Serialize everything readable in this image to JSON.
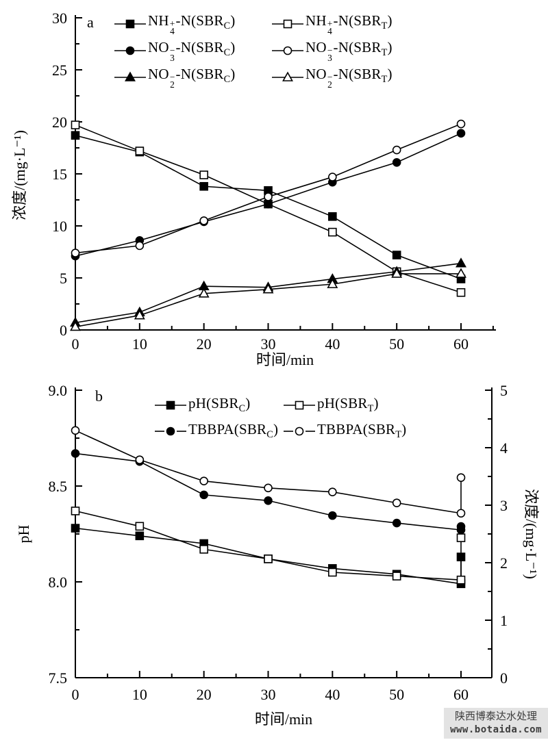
{
  "figure": {
    "background": "#ffffff",
    "line_color": "#000000",
    "text_color": "#000000"
  },
  "watermark": {
    "company": "陕西博泰达水处理",
    "url": "www.botaida.com"
  },
  "chart_data": [
    {
      "panel_tag": "a",
      "type": "line",
      "x": [
        0,
        10,
        20,
        30,
        40,
        50,
        60
      ],
      "xlabel": "时间/min",
      "ylabel": "浓度/(mg·L⁻¹)",
      "xlim": [
        0,
        65
      ],
      "ylim": [
        0,
        30
      ],
      "xticks": [
        0,
        10,
        20,
        30,
        40,
        50,
        60
      ],
      "yticks": [
        0,
        5,
        10,
        15,
        20,
        25,
        30
      ],
      "x_minor": [
        5,
        15,
        25,
        35,
        45,
        55,
        65
      ],
      "y_minor_step": 2.5,
      "grid": false,
      "legend_position": "top-inside-two-columns",
      "series": [
        {
          "id": "nh4-sbrc",
          "name": "NH4+-N(SBRC)",
          "marker": "square",
          "variant": "filled",
          "values": [
            18.7,
            17.1,
            13.8,
            13.4,
            10.9,
            7.2,
            4.9
          ],
          "legend_parts": [
            {
              "t": "NH"
            },
            {
              "stk": [
                "+",
                "4"
              ]
            },
            {
              "t": "-N(SBR"
            },
            {
              "sub": "C"
            },
            {
              "t": ")"
            }
          ]
        },
        {
          "id": "nh4-sbrt",
          "name": "NH4+-N(SBRT)",
          "marker": "square",
          "variant": "open",
          "values": [
            19.7,
            17.2,
            14.9,
            12.1,
            9.4,
            5.6,
            3.6
          ],
          "legend_parts": [
            {
              "t": "NH"
            },
            {
              "stk": [
                "+",
                "4"
              ]
            },
            {
              "t": "-N(SBR"
            },
            {
              "sub": "T"
            },
            {
              "t": ")"
            }
          ]
        },
        {
          "id": "no3-sbrc",
          "name": "NO3--N(SBRC)",
          "marker": "circle",
          "variant": "filled",
          "values": [
            7.1,
            8.6,
            10.4,
            12.1,
            14.2,
            16.1,
            18.9
          ],
          "legend_parts": [
            {
              "t": "NO"
            },
            {
              "stk": [
                "−",
                "3"
              ]
            },
            {
              "t": "-N(SBR"
            },
            {
              "sub": "C"
            },
            {
              "t": ")"
            }
          ]
        },
        {
          "id": "no3-sbrt",
          "name": "NO3--N(SBRT)",
          "marker": "circle",
          "variant": "open",
          "values": [
            7.4,
            8.1,
            10.5,
            12.8,
            14.7,
            17.3,
            19.8
          ],
          "legend_parts": [
            {
              "t": "NO"
            },
            {
              "stk": [
                "−",
                "3"
              ]
            },
            {
              "t": "-N(SBR"
            },
            {
              "sub": "T"
            },
            {
              "t": ")"
            }
          ]
        },
        {
          "id": "no2-sbrc",
          "name": "NO2--N(SBRC)",
          "marker": "triangle",
          "variant": "filled",
          "values": [
            0.7,
            1.7,
            4.2,
            4.1,
            4.9,
            5.6,
            6.4
          ],
          "legend_parts": [
            {
              "t": "NO"
            },
            {
              "stk": [
                "−",
                "2"
              ]
            },
            {
              "t": "-N(SBR"
            },
            {
              "sub": "C"
            },
            {
              "t": ")"
            }
          ]
        },
        {
          "id": "no2-sbrt",
          "name": "NO2--N(SBRT)",
          "marker": "triangle",
          "variant": "open",
          "values": [
            0.3,
            1.4,
            3.5,
            3.9,
            4.4,
            5.4,
            5.4
          ],
          "legend_parts": [
            {
              "t": "NO"
            },
            {
              "stk": [
                "−",
                "2"
              ]
            },
            {
              "t": "-N(SBR"
            },
            {
              "sub": "T"
            },
            {
              "t": ")"
            }
          ]
        }
      ]
    },
    {
      "panel_tag": "b",
      "type": "line",
      "x": [
        0,
        10,
        20,
        30,
        40,
        50,
        60
      ],
      "xlabel": "时间/min",
      "ylabel_left": "pH",
      "ylabel_right": "浓度/(mg·L⁻¹)",
      "xlim": [
        0,
        65
      ],
      "ylim_left": [
        7.5,
        9.0
      ],
      "ylim_right": [
        0,
        5
      ],
      "xticks": [
        0,
        10,
        20,
        30,
        40,
        50,
        60
      ],
      "yticks_left": [
        "7.5",
        "8.0",
        "8.5",
        "9.0"
      ],
      "yticks_right": [
        0,
        1,
        2,
        3,
        4,
        5
      ],
      "x_minor": [
        5,
        15,
        25,
        35,
        45,
        55
      ],
      "y_left_minor_step": 0.25,
      "y_right_minor_step": 0.5,
      "grid": false,
      "legend_position": "top-inside-two-columns",
      "series": [
        {
          "id": "ph-sbrc",
          "name": "pH(SBRC)",
          "axis": "left",
          "marker": "square",
          "variant": "filled",
          "legend_gap": false,
          "values": [
            8.28,
            8.24,
            8.2,
            8.12,
            8.07,
            8.04,
            7.99
          ],
          "end_jump": 8.13,
          "legend_parts": [
            {
              "t": "pH(SBR"
            },
            {
              "sub": "C"
            },
            {
              "t": ")"
            }
          ]
        },
        {
          "id": "ph-sbrt",
          "name": "pH(SBRT)",
          "axis": "left",
          "marker": "square",
          "variant": "open",
          "legend_gap": false,
          "values": [
            8.37,
            8.29,
            8.17,
            8.12,
            8.05,
            8.03,
            8.01
          ],
          "end_jump": 8.23,
          "legend_parts": [
            {
              "t": "pH(SBR"
            },
            {
              "sub": "T"
            },
            {
              "t": ")"
            }
          ]
        },
        {
          "id": "tbbpa-sbrc",
          "name": "TBBPA(SBRC)",
          "axis": "right",
          "marker": "circle",
          "variant": "filled",
          "legend_gap": true,
          "values": [
            3.9,
            3.76,
            3.18,
            3.08,
            2.82,
            2.69,
            2.57
          ],
          "end_jump": 2.63,
          "legend_parts": [
            {
              "t": "TBBPA(SBR"
            },
            {
              "sub": "C"
            },
            {
              "t": ")"
            }
          ]
        },
        {
          "id": "tbbpa-sbrt",
          "name": "TBBPA(SBRT)",
          "axis": "right",
          "marker": "circle",
          "variant": "open",
          "legend_gap": true,
          "values": [
            4.3,
            3.79,
            3.42,
            3.3,
            3.23,
            3.04,
            2.86
          ],
          "end_jump": 3.48,
          "legend_parts": [
            {
              "t": "TBBPA(SBR"
            },
            {
              "sub": "T"
            },
            {
              "t": ")"
            }
          ]
        }
      ]
    }
  ]
}
